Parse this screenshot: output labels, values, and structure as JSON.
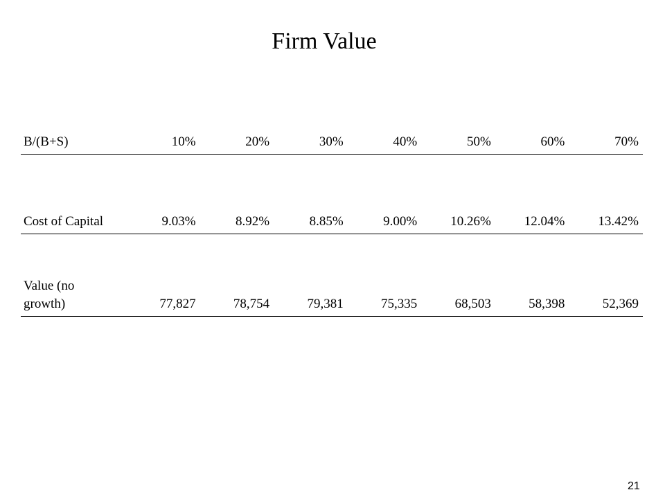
{
  "title": "Firm Value",
  "table": {
    "rows": [
      {
        "label": "B/(B+S)",
        "values": [
          "10%",
          "20%",
          "30%",
          "40%",
          "50%",
          "60%",
          "70%"
        ]
      },
      {
        "label": "Cost of Capital",
        "values": [
          "9.03%",
          "8.92%",
          "8.85%",
          "9.00%",
          "10.26%",
          "12.04%",
          "13.42%"
        ]
      },
      {
        "label_line1": "Value (no",
        "label_line2": "growth)",
        "values": [
          "77,827",
          "78,754",
          "79,381",
          "75,335",
          "68,503",
          "58,398",
          "52,369"
        ]
      }
    ]
  },
  "page_number": "21"
}
